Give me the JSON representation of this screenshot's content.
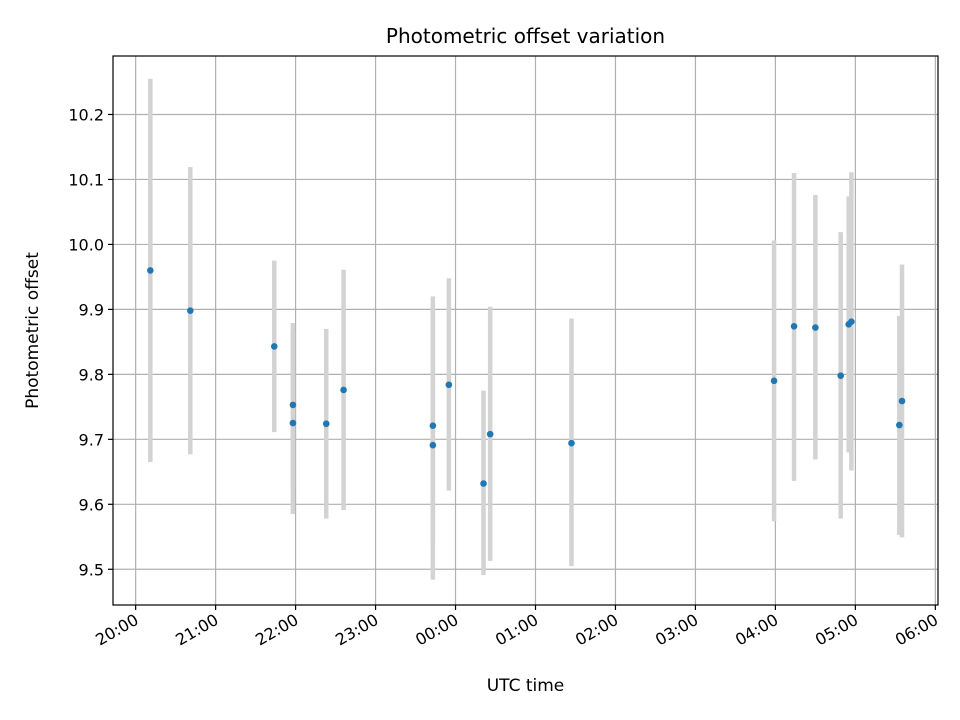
{
  "chart_data": {
    "type": "scatter",
    "title": "Photometric offset variation",
    "xlabel": "UTC time",
    "ylabel": "Photometric offset",
    "x_axis": {
      "start": "20:00",
      "tick_labels": [
        "20:00",
        "21:00",
        "22:00",
        "23:00",
        "00:00",
        "01:00",
        "02:00",
        "03:00",
        "04:00",
        "05:00",
        "06:00"
      ],
      "xlim": [
        "19:43",
        "06:02"
      ]
    },
    "y_axis": {
      "tick_labels": [
        "9.5",
        "9.6",
        "9.7",
        "9.8",
        "9.9",
        "10.0",
        "10.1",
        "10.2"
      ],
      "ylim": [
        9.445,
        10.29
      ]
    },
    "grid": true,
    "colors": {
      "point": "#1f77b4",
      "error_bar": "#d3d3d3",
      "grid": "#b0b0b0"
    },
    "points": [
      {
        "x": "20:11",
        "y": 9.96,
        "err_low": 9.665,
        "err_high": 10.255
      },
      {
        "x": "20:41",
        "y": 9.898,
        "err_low": 9.677,
        "err_high": 10.119
      },
      {
        "x": "21:44",
        "y": 9.843,
        "err_low": 9.711,
        "err_high": 9.975
      },
      {
        "x": "21:58",
        "y": 9.753,
        "err_low": 9.627,
        "err_high": 9.879
      },
      {
        "x": "21:58",
        "y": 9.725,
        "err_low": 9.585,
        "err_high": 9.865
      },
      {
        "x": "22:23",
        "y": 9.724,
        "err_low": 9.578,
        "err_high": 9.87
      },
      {
        "x": "22:36",
        "y": 9.776,
        "err_low": 9.591,
        "err_high": 9.961
      },
      {
        "x": "23:43",
        "y": 9.721,
        "err_low": 9.542,
        "err_high": 9.9
      },
      {
        "x": "23:43",
        "y": 9.691,
        "err_low": 9.484,
        "err_high": 9.92
      },
      {
        "x": "23:55",
        "y": 9.784,
        "err_low": 9.621,
        "err_high": 9.948
      },
      {
        "x": "00:21",
        "y": 9.632,
        "err_low": 9.491,
        "err_high": 9.775
      },
      {
        "x": "00:26",
        "y": 9.708,
        "err_low": 9.513,
        "err_high": 9.904
      },
      {
        "x": "01:27",
        "y": 9.694,
        "err_low": 9.505,
        "err_high": 9.886
      },
      {
        "x": "03:59",
        "y": 9.79,
        "err_low": 9.574,
        "err_high": 10.006
      },
      {
        "x": "04:14",
        "y": 9.874,
        "err_low": 9.636,
        "err_high": 10.11
      },
      {
        "x": "04:30",
        "y": 9.872,
        "err_low": 9.669,
        "err_high": 10.076
      },
      {
        "x": "04:49",
        "y": 9.798,
        "err_low": 9.578,
        "err_high": 10.019
      },
      {
        "x": "04:55",
        "y": 9.877,
        "err_low": 9.68,
        "err_high": 10.074
      },
      {
        "x": "04:57",
        "y": 9.881,
        "err_low": 9.652,
        "err_high": 10.111
      },
      {
        "x": "05:33",
        "y": 9.722,
        "err_low": 9.553,
        "err_high": 9.89
      },
      {
        "x": "05:35",
        "y": 9.759,
        "err_low": 9.549,
        "err_high": 9.969
      }
    ]
  }
}
